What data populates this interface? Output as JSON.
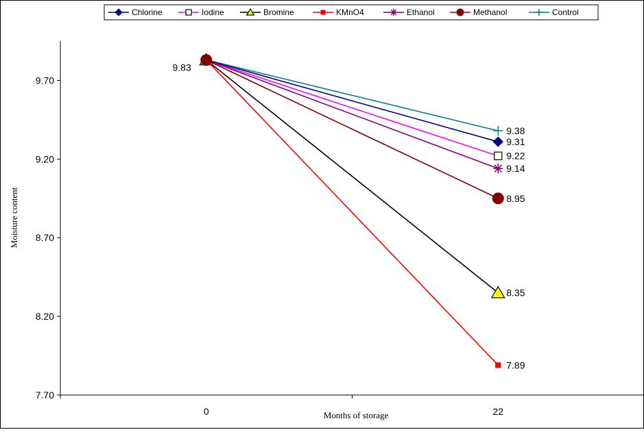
{
  "chart_data": {
    "type": "line",
    "title": "",
    "xlabel": "Months of storage",
    "ylabel": "Moisture content",
    "categories": [
      "0",
      "22"
    ],
    "ylim": [
      7.7,
      9.95
    ],
    "yticks": [
      "7.70",
      "8.20",
      "8.70",
      "9.20",
      "9.70"
    ],
    "grid": false,
    "legend_position": "top",
    "start_label": "9.83",
    "series": [
      {
        "name": "Chlorine",
        "values": [
          9.83,
          9.31
        ],
        "end_label": "9.31",
        "color": "#000080",
        "marker": "diamond"
      },
      {
        "name": "Iodine",
        "values": [
          9.83,
          9.22
        ],
        "end_label": "9.22",
        "color": "#ff00ff",
        "marker": "square-open"
      },
      {
        "name": "Bromine",
        "values": [
          9.83,
          8.35
        ],
        "end_label": "8.35",
        "color": "#000000",
        "marker": "triangle"
      },
      {
        "name": "KMnO4",
        "values": [
          9.83,
          7.89
        ],
        "end_label": "7.89",
        "color": "#ff0000",
        "marker": "square"
      },
      {
        "name": "Ethanol",
        "values": [
          9.83,
          9.14
        ],
        "end_label": "9.14",
        "color": "#800080",
        "marker": "star"
      },
      {
        "name": "Methanol",
        "values": [
          9.83,
          8.95
        ],
        "end_label": "8.95",
        "color": "#800000",
        "marker": "circle"
      },
      {
        "name": "Control",
        "values": [
          9.83,
          9.38
        ],
        "end_label": "9.38",
        "color": "#008080",
        "marker": "plus"
      }
    ]
  }
}
